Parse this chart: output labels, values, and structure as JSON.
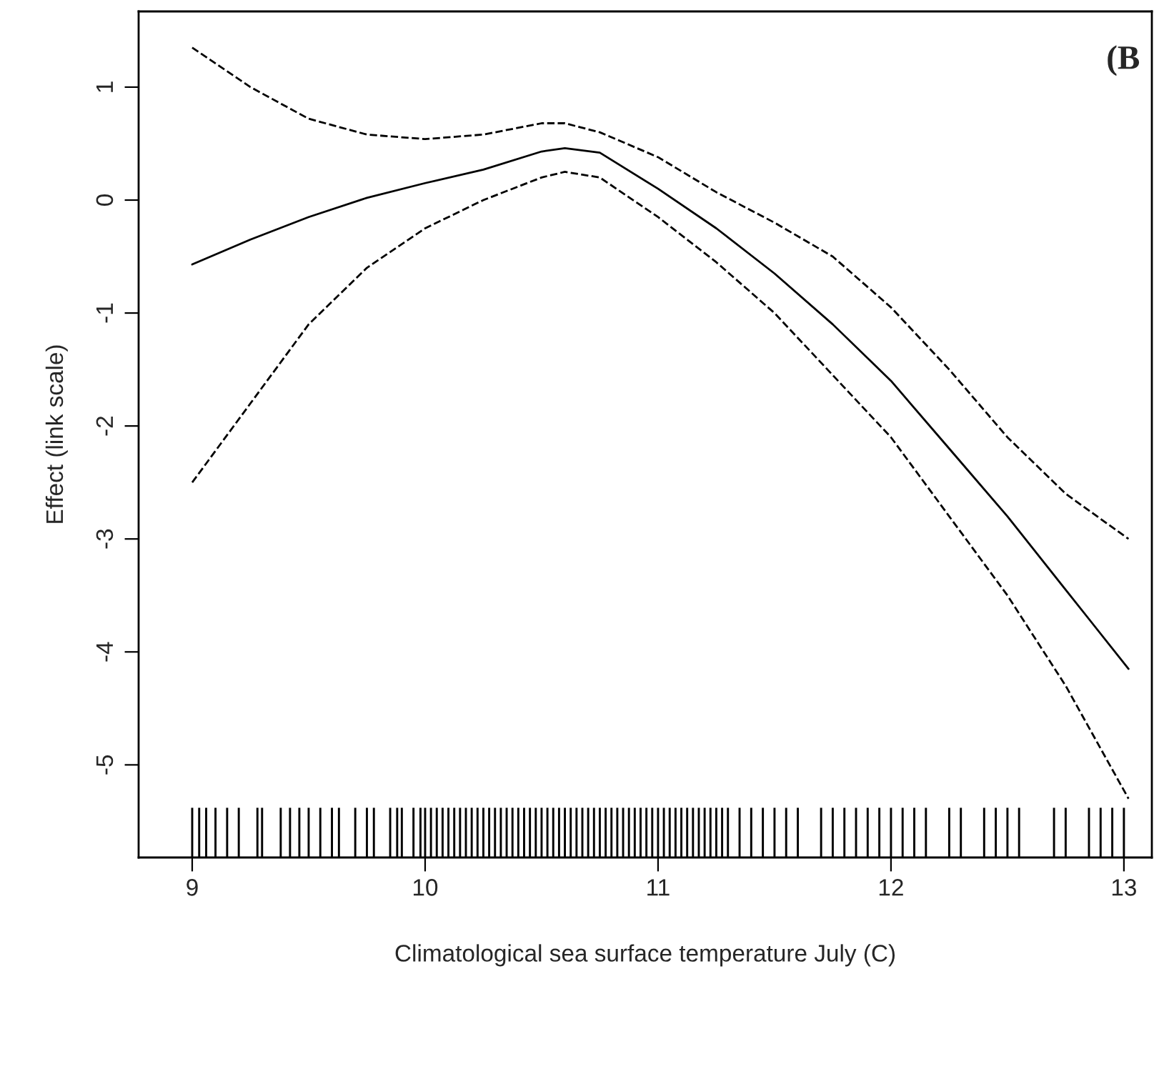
{
  "chart_data": {
    "type": "line",
    "xlabel": "Climatological sea surface temperature July (C)",
    "ylabel": "Effect (link scale)",
    "xlim": [
      8.77,
      13.12
    ],
    "ylim": [
      -5.82,
      1.67
    ],
    "xticks": [
      9,
      10,
      11,
      12,
      13
    ],
    "yticks": [
      -5,
      -4,
      -3,
      -2,
      -1,
      0,
      1
    ],
    "grid": false,
    "legend": false,
    "annotations": [
      "(B"
    ],
    "series": [
      {
        "color": "#000000",
        "line_style": "solid",
        "x": [
          9,
          9.25,
          9.5,
          9.75,
          10,
          10.25,
          10.5,
          10.6,
          10.75,
          11,
          11.25,
          11.5,
          11.75,
          12,
          12.25,
          12.5,
          12.75,
          13.02
        ],
        "values": [
          -0.57,
          -0.35,
          -0.15,
          0.02,
          0.15,
          0.27,
          0.43,
          0.46,
          0.42,
          0.1,
          -0.25,
          -0.65,
          -1.1,
          -1.6,
          -2.2,
          -2.8,
          -3.45,
          -4.15
        ]
      },
      {
        "color": "#000000",
        "line_style": "dashed",
        "x": [
          9,
          9.25,
          9.5,
          9.75,
          10,
          10.25,
          10.5,
          10.6,
          10.75,
          11,
          11.25,
          11.5,
          11.75,
          12,
          12.25,
          12.5,
          12.75,
          13.02
        ],
        "values": [
          1.35,
          1.0,
          0.72,
          0.58,
          0.54,
          0.58,
          0.68,
          0.68,
          0.6,
          0.38,
          0.07,
          -0.2,
          -0.5,
          -0.95,
          -1.5,
          -2.1,
          -2.6,
          -3.0
        ]
      },
      {
        "color": "#000000",
        "line_style": "dashed",
        "x": [
          9,
          9.25,
          9.5,
          9.75,
          10,
          10.25,
          10.5,
          10.6,
          10.75,
          11,
          11.25,
          11.5,
          11.75,
          12,
          12.25,
          12.5,
          12.75,
          13.02
        ],
        "values": [
          -2.5,
          -1.8,
          -1.1,
          -0.6,
          -0.25,
          0.0,
          0.2,
          0.25,
          0.2,
          -0.15,
          -0.55,
          -1.0,
          -1.55,
          -2.1,
          -2.8,
          -3.5,
          -4.3,
          -5.3
        ]
      },
      {
        "type": "bar",
        "color": "#000000",
        "base": [
          -5.82,
          -5.82,
          -5.82,
          -5.82,
          -5.82,
          -5.82,
          -5.82,
          -5.82,
          -5.82,
          -5.82,
          -5.82,
          -5.82,
          -5.82,
          -5.82,
          -5.82,
          -5.82,
          -5.82,
          -5.82,
          -5.82,
          -5.82,
          -5.82,
          -5.82,
          -5.82,
          -5.82,
          -5.82,
          -5.82,
          -5.82,
          -5.82,
          -5.82,
          -5.82,
          -5.82,
          -5.82,
          -5.82,
          -5.82,
          -5.82,
          -5.82,
          -5.82,
          -5.82,
          -5.82,
          -5.82,
          -5.82,
          -5.82,
          -5.82,
          -5.82,
          -5.82,
          -5.82,
          -5.82,
          -5.82,
          -5.82,
          -5.82,
          -5.82,
          -5.82,
          -5.82,
          -5.82,
          -5.82,
          -5.82,
          -5.82,
          -5.82,
          -5.82,
          -5.82,
          -5.82,
          -5.82,
          -5.82,
          -5.82,
          -5.82,
          -5.82,
          -5.82,
          -5.82,
          -5.82,
          -5.82,
          -5.82,
          -5.82,
          -5.82,
          -5.82,
          -5.82,
          -5.82,
          -5.82,
          -5.82,
          -5.82,
          -5.82,
          -5.82,
          -5.82,
          -5.82,
          -5.82,
          -5.82,
          -5.82,
          -5.82,
          -5.82,
          -5.82,
          -5.82,
          -5.82,
          -5.82,
          -5.82,
          -5.82,
          -5.82,
          -5.82,
          -5.82,
          -5.82,
          -5.82,
          -5.82,
          -5.82,
          -5.82,
          -5.82,
          -5.82
        ],
        "x": [
          9.0,
          9.03,
          9.06,
          9.1,
          9.15,
          9.2,
          9.28,
          9.3,
          9.38,
          9.42,
          9.46,
          9.5,
          9.55,
          9.6,
          9.63,
          9.7,
          9.75,
          9.78,
          9.85,
          9.88,
          9.9,
          9.95,
          9.98,
          10.0,
          10.025,
          10.05,
          10.075,
          10.1,
          10.125,
          10.15,
          10.175,
          10.2,
          10.225,
          10.25,
          10.275,
          10.3,
          10.325,
          10.35,
          10.375,
          10.4,
          10.425,
          10.45,
          10.475,
          10.5,
          10.525,
          10.55,
          10.575,
          10.6,
          10.625,
          10.65,
          10.675,
          10.7,
          10.725,
          10.75,
          10.775,
          10.8,
          10.825,
          10.85,
          10.875,
          10.9,
          10.925,
          10.95,
          10.975,
          11.0,
          11.025,
          11.05,
          11.075,
          11.1,
          11.125,
          11.15,
          11.175,
          11.2,
          11.225,
          11.25,
          11.275,
          11.3,
          11.35,
          11.4,
          11.45,
          11.5,
          11.55,
          11.6,
          11.7,
          11.75,
          11.8,
          11.85,
          11.9,
          11.95,
          12.0,
          12.05,
          12.1,
          12.15,
          12.25,
          12.3,
          12.4,
          12.45,
          12.5,
          12.55,
          12.7,
          12.75,
          12.85,
          12.9,
          12.95,
          13.0
        ],
        "values": [
          0.44,
          0.44,
          0.44,
          0.44,
          0.44,
          0.44,
          0.44,
          0.44,
          0.44,
          0.44,
          0.44,
          0.44,
          0.44,
          0.44,
          0.44,
          0.44,
          0.44,
          0.44,
          0.44,
          0.44,
          0.44,
          0.44,
          0.44,
          0.44,
          0.44,
          0.44,
          0.44,
          0.44,
          0.44,
          0.44,
          0.44,
          0.44,
          0.44,
          0.44,
          0.44,
          0.44,
          0.44,
          0.44,
          0.44,
          0.44,
          0.44,
          0.44,
          0.44,
          0.44,
          0.44,
          0.44,
          0.44,
          0.44,
          0.44,
          0.44,
          0.44,
          0.44,
          0.44,
          0.44,
          0.44,
          0.44,
          0.44,
          0.44,
          0.44,
          0.44,
          0.44,
          0.44,
          0.44,
          0.44,
          0.44,
          0.44,
          0.44,
          0.44,
          0.44,
          0.44,
          0.44,
          0.44,
          0.44,
          0.44,
          0.44,
          0.44,
          0.44,
          0.44,
          0.44,
          0.44,
          0.44,
          0.44,
          0.44,
          0.44,
          0.44,
          0.44,
          0.44,
          0.44,
          0.44,
          0.44,
          0.44,
          0.44,
          0.44,
          0.44,
          0.44,
          0.44,
          0.44,
          0.44,
          0.44,
          0.44,
          0.44,
          0.44,
          0.44,
          0.44
        ]
      }
    ]
  }
}
